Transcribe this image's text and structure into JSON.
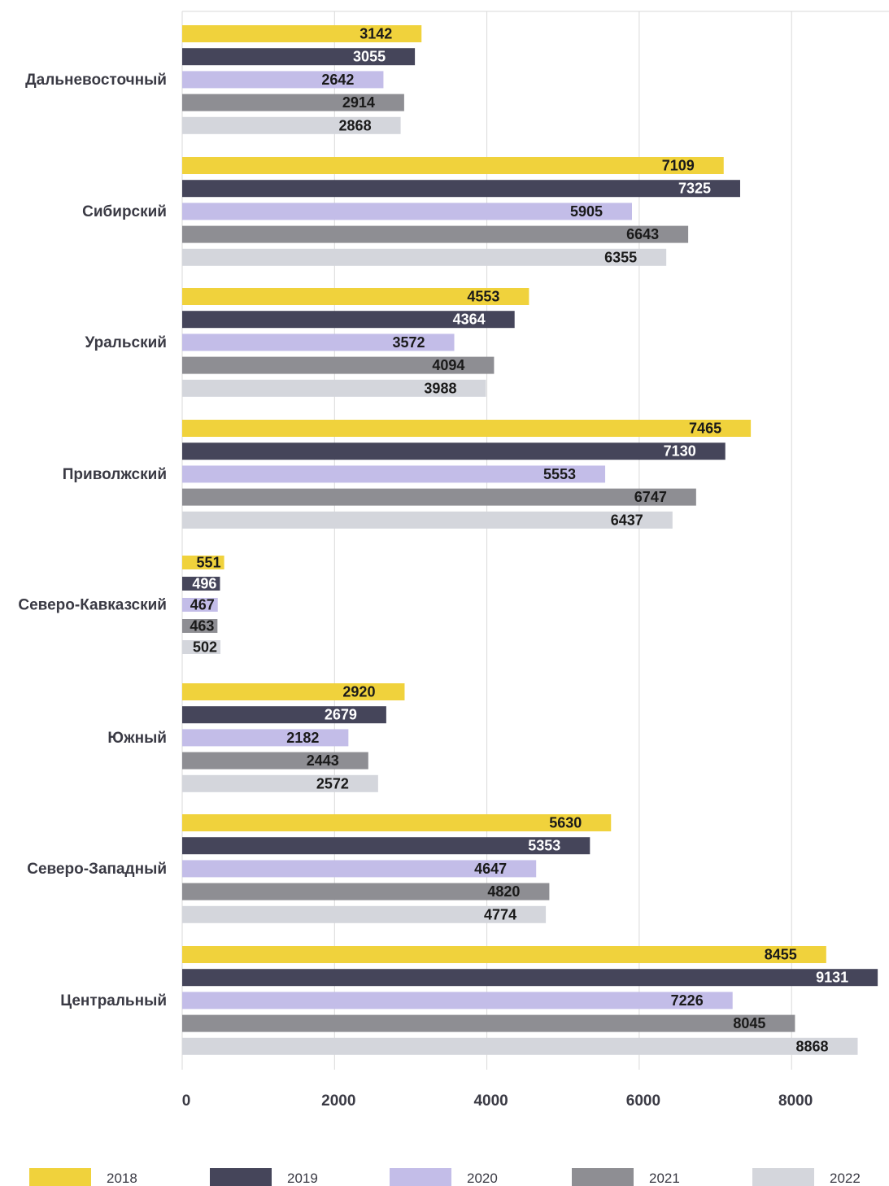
{
  "chart_data": {
    "type": "bar",
    "orientation": "horizontal",
    "title": "",
    "xlabel": "",
    "ylabel": "",
    "xlim": [
      0,
      9100
    ],
    "x_ticks": [
      0,
      2000,
      4000,
      6000,
      8000
    ],
    "grid": "vertical",
    "legend_position": "bottom",
    "categories": [
      "Дальневосточный",
      "Сибирский",
      "Уральский",
      "Приволжский",
      "Северо-Кавказский",
      "Южный",
      "Северо-Западный",
      "Центральный"
    ],
    "series": [
      {
        "name": "2018",
        "color": "#f0d23c",
        "label_color": "#1a1a1a",
        "values": [
          3142,
          7109,
          4553,
          7465,
          551,
          2920,
          5630,
          8455
        ]
      },
      {
        "name": "2019",
        "color": "#45455a",
        "label_color": "#ffffff",
        "values": [
          3055,
          7325,
          4364,
          7130,
          496,
          2679,
          5353,
          9131
        ]
      },
      {
        "name": "2020",
        "color": "#c3bde8",
        "label_color": "#1a1a1a",
        "values": [
          2642,
          5905,
          3572,
          5553,
          467,
          2182,
          4647,
          7226
        ]
      },
      {
        "name": "2021",
        "color": "#8e8e93",
        "label_color": "#1a1a1a",
        "values": [
          2914,
          6643,
          4094,
          6747,
          463,
          2443,
          4820,
          8045
        ]
      },
      {
        "name": "2022",
        "color": "#d4d6dc",
        "label_color": "#1a1a1a",
        "values": [
          2868,
          6355,
          3988,
          6437,
          502,
          2572,
          4774,
          8868
        ]
      }
    ]
  }
}
